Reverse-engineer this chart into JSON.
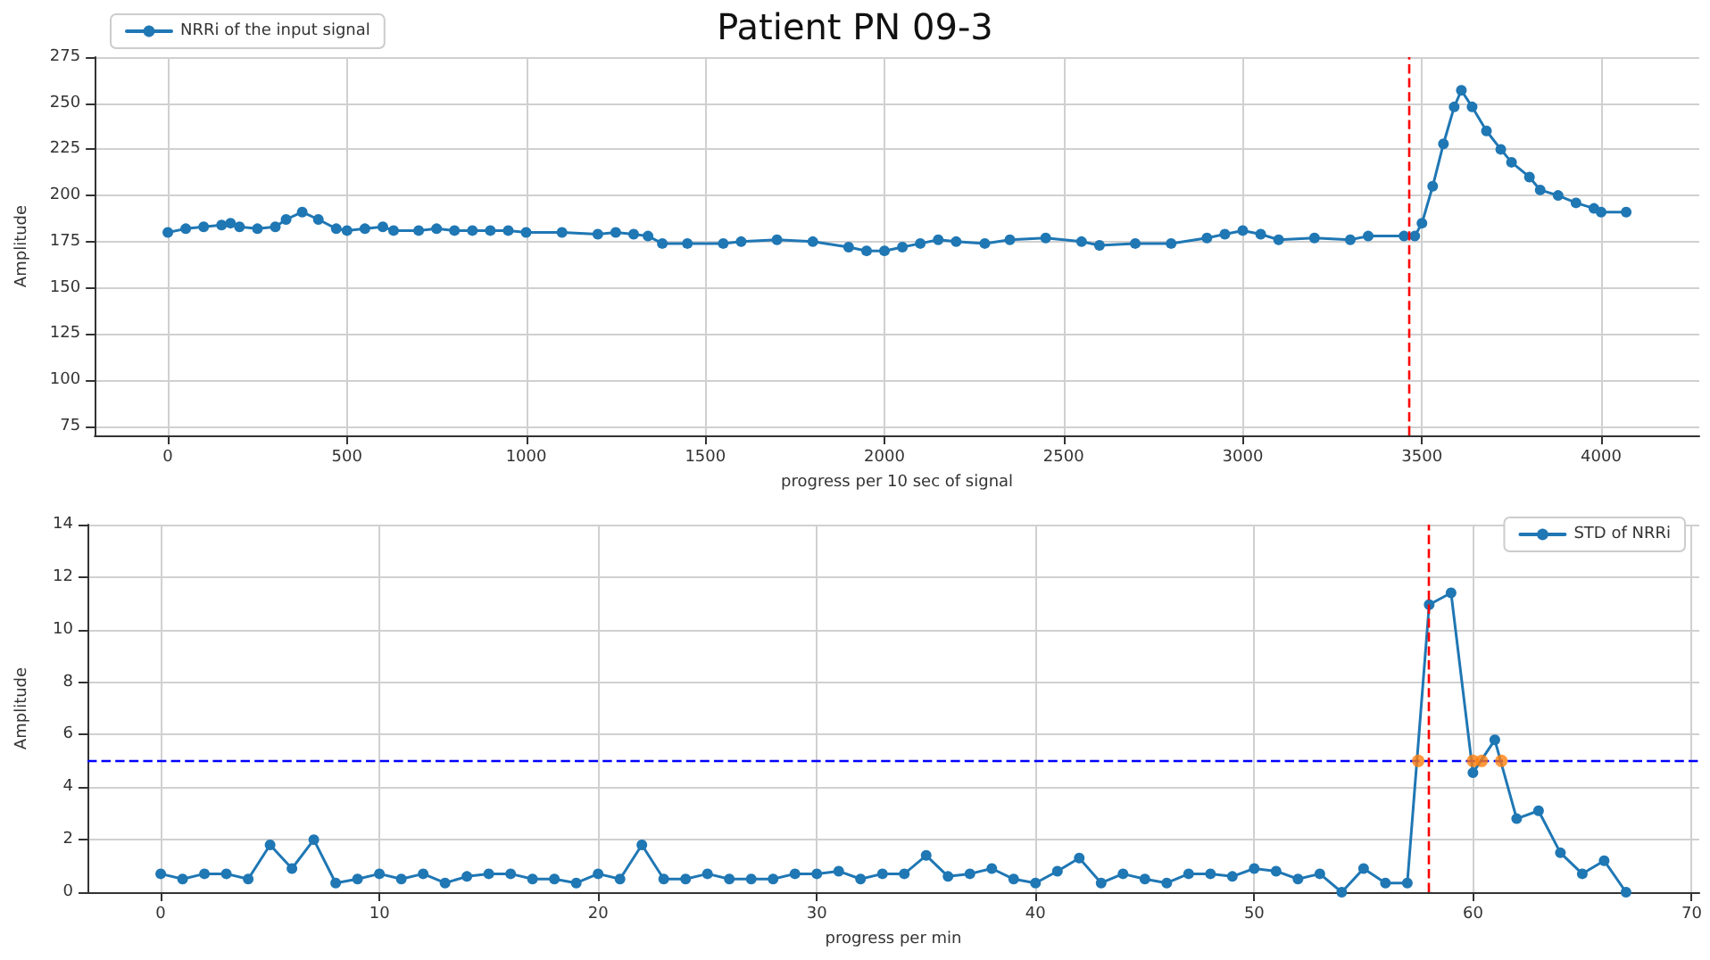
{
  "chart_data": [
    {
      "type": "line",
      "title": "Patient PN 09-3",
      "xlabel": "progress per 10 sec of signal",
      "ylabel": "Amplitude",
      "xlim": [
        -204,
        4274
      ],
      "ylim": [
        70,
        275
      ],
      "xticks": [
        0,
        500,
        1000,
        1500,
        2000,
        2500,
        3000,
        3500,
        4000
      ],
      "yticks": [
        75,
        100,
        125,
        150,
        175,
        200,
        225,
        250,
        275
      ],
      "grid": true,
      "legend": "top left",
      "marker": "circle",
      "line_style": "solid",
      "ref_lines": [
        {
          "axis": "x",
          "value": 3465,
          "color": "#ff0000",
          "line_style": "dashed"
        }
      ],
      "series": [
        {
          "name": "NRRi of the input signal",
          "color": "#1f77b4",
          "x": [
            0,
            50,
            100,
            150,
            175,
            200,
            250,
            300,
            330,
            375,
            420,
            470,
            500,
            550,
            600,
            630,
            700,
            750,
            800,
            850,
            900,
            950,
            1000,
            1100,
            1200,
            1250,
            1300,
            1340,
            1380,
            1450,
            1550,
            1600,
            1700,
            1800,
            1900,
            1950,
            2000,
            2050,
            2100,
            2150,
            2200,
            2280,
            2350,
            2450,
            2550,
            2600,
            2700,
            2800,
            2900,
            2950,
            3000,
            3050,
            3100,
            3200,
            3300,
            3350,
            3450,
            3480,
            3500,
            3530,
            3560,
            3590,
            3610,
            3640,
            3680,
            3720,
            3750,
            3800,
            3830,
            3880,
            3930,
            3980,
            4000,
            4070
          ],
          "values": [
            180,
            182,
            183,
            184,
            185,
            183,
            182,
            183,
            187,
            191,
            187,
            182,
            181,
            182,
            183,
            181,
            181,
            182,
            181,
            181,
            181,
            181,
            180,
            180,
            179,
            180,
            179,
            178,
            174,
            174,
            174,
            175,
            176,
            175,
            172,
            170,
            170,
            172,
            174,
            176,
            175,
            174,
            176,
            177,
            175,
            173,
            174,
            174,
            177,
            179,
            181,
            179,
            176,
            177,
            176,
            178,
            178,
            178,
            185,
            205,
            228,
            248,
            257,
            248,
            235,
            225,
            218,
            210,
            203,
            200,
            196,
            193,
            191,
            191
          ]
        }
      ]
    },
    {
      "type": "line",
      "xlabel": "progress per min",
      "ylabel": "Amplitude",
      "xlim": [
        -3.35,
        70.35
      ],
      "ylim": [
        0,
        14
      ],
      "xticks": [
        0,
        10,
        20,
        30,
        40,
        50,
        60,
        70
      ],
      "yticks": [
        0,
        2,
        4,
        6,
        8,
        10,
        12,
        14
      ],
      "grid": true,
      "legend": "top right",
      "marker": "circle",
      "line_style": "solid",
      "ref_lines": [
        {
          "axis": "y",
          "value": 5,
          "color": "#0000ff",
          "line_style": "dashed"
        },
        {
          "axis": "x",
          "value": 58,
          "color": "#ff0000",
          "line_style": "dashed"
        }
      ],
      "series": [
        {
          "name": "STD of NRRi",
          "color": "#1f77b4",
          "x": [
            0,
            1,
            2,
            3,
            4,
            5,
            6,
            7,
            8,
            9,
            10,
            11,
            12,
            13,
            14,
            15,
            16,
            17,
            18,
            19,
            20,
            21,
            22,
            23,
            24,
            25,
            26,
            27,
            28,
            29,
            30,
            31,
            32,
            33,
            34,
            35,
            36,
            37,
            38,
            39,
            40,
            41,
            42,
            43,
            44,
            45,
            46,
            47,
            48,
            49,
            50,
            51,
            52,
            53,
            54,
            55,
            56,
            57,
            58,
            59,
            60,
            61,
            62,
            63,
            64,
            65,
            66,
            67
          ],
          "values": [
            0.7,
            0.5,
            0.7,
            0.7,
            0.5,
            1.8,
            0.9,
            2.0,
            0.35,
            0.5,
            0.7,
            0.5,
            0.7,
            0.35,
            0.6,
            0.7,
            0.7,
            0.5,
            0.5,
            0.35,
            0.7,
            0.5,
            1.8,
            0.5,
            0.5,
            0.7,
            0.5,
            0.5,
            0.5,
            0.7,
            0.7,
            0.8,
            0.5,
            0.7,
            0.7,
            1.4,
            0.6,
            0.7,
            0.9,
            0.5,
            0.35,
            0.8,
            1.3,
            0.35,
            0.7,
            0.5,
            0.35,
            0.7,
            0.7,
            0.6,
            0.9,
            0.8,
            0.5,
            0.7,
            0,
            0.9,
            0.35,
            0.35,
            10.95,
            11.4,
            4.55,
            5.8,
            2.8,
            3.1,
            1.5,
            0.7,
            1.2,
            0
          ]
        },
        {
          "type": "scatter",
          "color": "#ff7f0e",
          "x": [
            57.5,
            60.0,
            60.4,
            61.3
          ],
          "values": [
            5,
            5,
            5,
            5
          ]
        }
      ]
    }
  ]
}
